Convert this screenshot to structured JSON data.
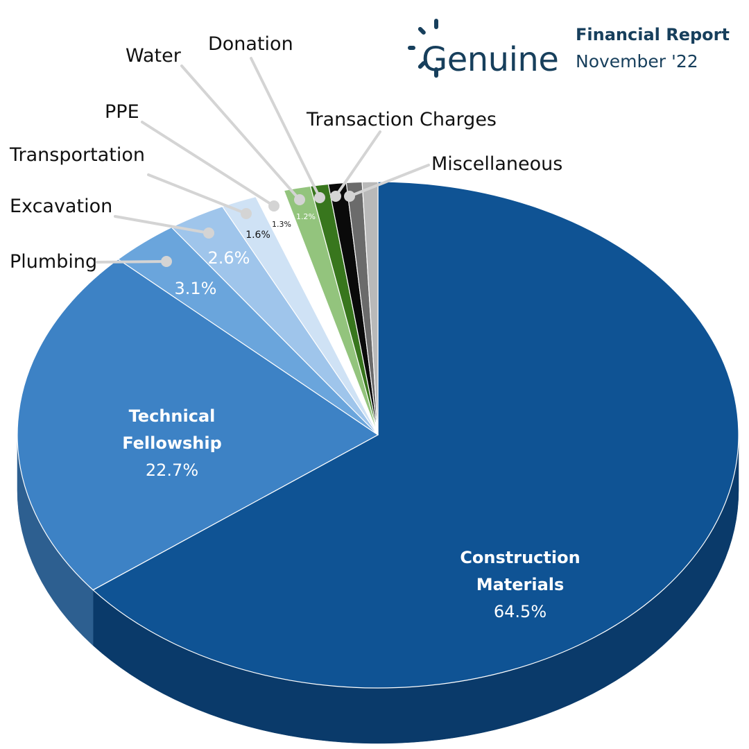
{
  "header": {
    "brand": "Genuine",
    "report_title": "Financial Report",
    "report_date": "November '22"
  },
  "chart_data": {
    "type": "pie",
    "title": "",
    "style": "3d",
    "slices": [
      {
        "label": "Construction Materials",
        "label_lines": [
          "Construction",
          "Materials"
        ],
        "value": 64.5,
        "value_label": "64.5%",
        "color": "#0f5394",
        "side_color": "#0a3a6a",
        "label_mode": "inside"
      },
      {
        "label": "Technical Fellowship",
        "label_lines": [
          "Technical",
          "Fellowship"
        ],
        "value": 22.7,
        "value_label": "22.7%",
        "color": "#3d82c5",
        "side_color": "#2d5f90",
        "label_mode": "inside"
      },
      {
        "label": "Plumbing",
        "value": 3.1,
        "value_label": "3.1%",
        "color": "#6aa5dc",
        "side_color": "#4e7aa3",
        "label_mode": "callout"
      },
      {
        "label": "Excavation",
        "value": 2.6,
        "value_label": "2.6%",
        "color": "#9fc5eb",
        "side_color": "#7796b5",
        "label_mode": "callout"
      },
      {
        "label": "Transportation",
        "value": 1.6,
        "value_label": "1.6%",
        "color": "#cfe2f5",
        "side_color": "#a4b4c3",
        "label_mode": "callout"
      },
      {
        "label": "PPE",
        "value": 1.3,
        "value_label": "1.3%",
        "color": "#ffffff",
        "side_color": "#d8d8d8",
        "label_mode": "callout"
      },
      {
        "label": "Water",
        "value": 1.2,
        "value_label": "1.2%",
        "color": "#93c47d",
        "side_color": "#6f9a5c",
        "label_mode": "callout"
      },
      {
        "label": "Donation",
        "value": 0.8,
        "value_label": "",
        "color": "#38761d",
        "side_color": "#275614",
        "label_mode": "callout"
      },
      {
        "label": "Transaction Charges",
        "value": 0.8,
        "value_label": "",
        "color": "#0a0a0a",
        "side_color": "#000000",
        "label_mode": "callout"
      },
      {
        "label": "Miscellaneous",
        "value": 0.7,
        "value_label": "",
        "color": "#6b6b6b",
        "side_color": "#4a4a4a",
        "label_mode": "callout"
      },
      {
        "label": "",
        "value": 0.7,
        "value_label": "",
        "color": "#b9b9b9",
        "side_color": "#8c8c8c",
        "label_mode": "none"
      }
    ]
  }
}
